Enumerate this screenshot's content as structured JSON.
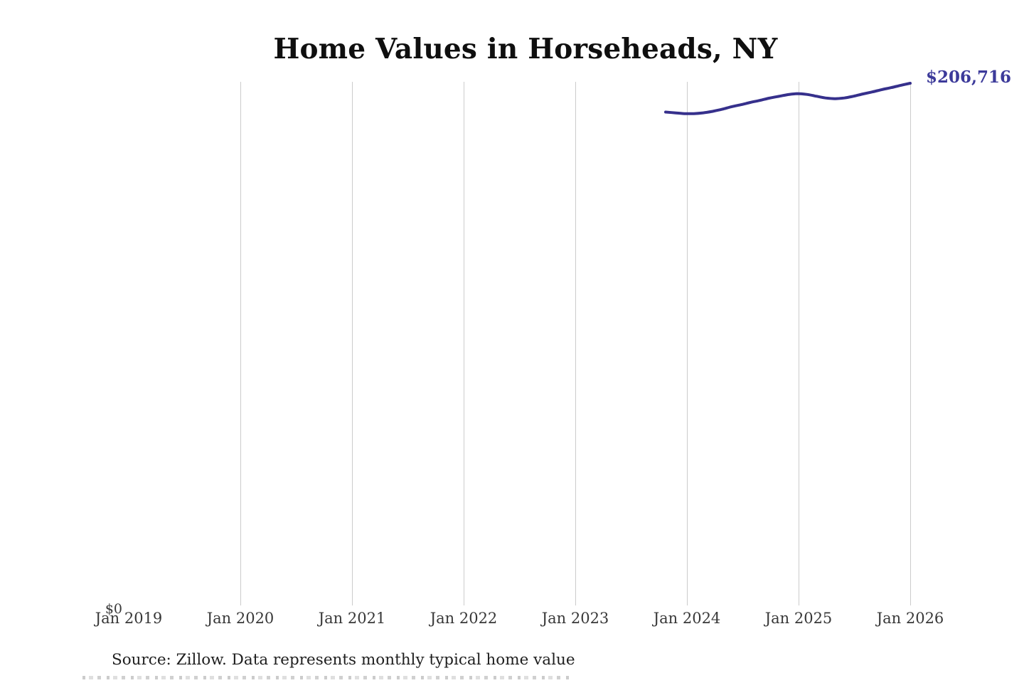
{
  "chart": {
    "title": "Home Values in Horseheads, NY",
    "end_label": "$206,716",
    "y_zero_label": "$0",
    "line_color": "#36308c",
    "end_label_color": "#3c3a9a"
  },
  "chart_data": {
    "type": "line",
    "title": "Home Values in Horseheads, NY",
    "xlabel": "",
    "ylabel": "",
    "x_axis_ticks": [
      "Jan 2019",
      "Jan 2020",
      "Jan 2021",
      "Jan 2022",
      "Jan 2023",
      "Jan 2024",
      "Jan 2025",
      "Jan 2026"
    ],
    "y_axis_ticks": [
      "$0"
    ],
    "ylim": [
      0,
      206716
    ],
    "grid": "vertical-only",
    "legend": "none",
    "end_annotation": "$206,716",
    "series": [
      {
        "name": "Monthly typical home value",
        "x": [
          "Nov 2023",
          "Dec 2023",
          "Jan 2024",
          "Feb 2024",
          "Mar 2024",
          "Apr 2024",
          "May 2024",
          "Jun 2024",
          "Jul 2024",
          "Aug 2024",
          "Sep 2024",
          "Oct 2024",
          "Nov 2024",
          "Dec 2024",
          "Jan 2025",
          "Feb 2025",
          "Mar 2025",
          "Apr 2025",
          "May 2025",
          "Jun 2025",
          "Jul 2025",
          "Aug 2025",
          "Sep 2025",
          "Oct 2025",
          "Nov 2025",
          "Dec 2025",
          "Jan 2026"
        ],
        "values": [
          195300,
          195000,
          194700,
          194700,
          195000,
          195600,
          196400,
          197400,
          198200,
          199100,
          199900,
          200800,
          201500,
          202200,
          202600,
          202300,
          201600,
          200900,
          200600,
          200900,
          201600,
          202500,
          203300,
          204200,
          205000,
          205900,
          206716
        ]
      }
    ]
  },
  "footer": {
    "source": "Source: Zillow. Data represents monthly typical home value"
  }
}
